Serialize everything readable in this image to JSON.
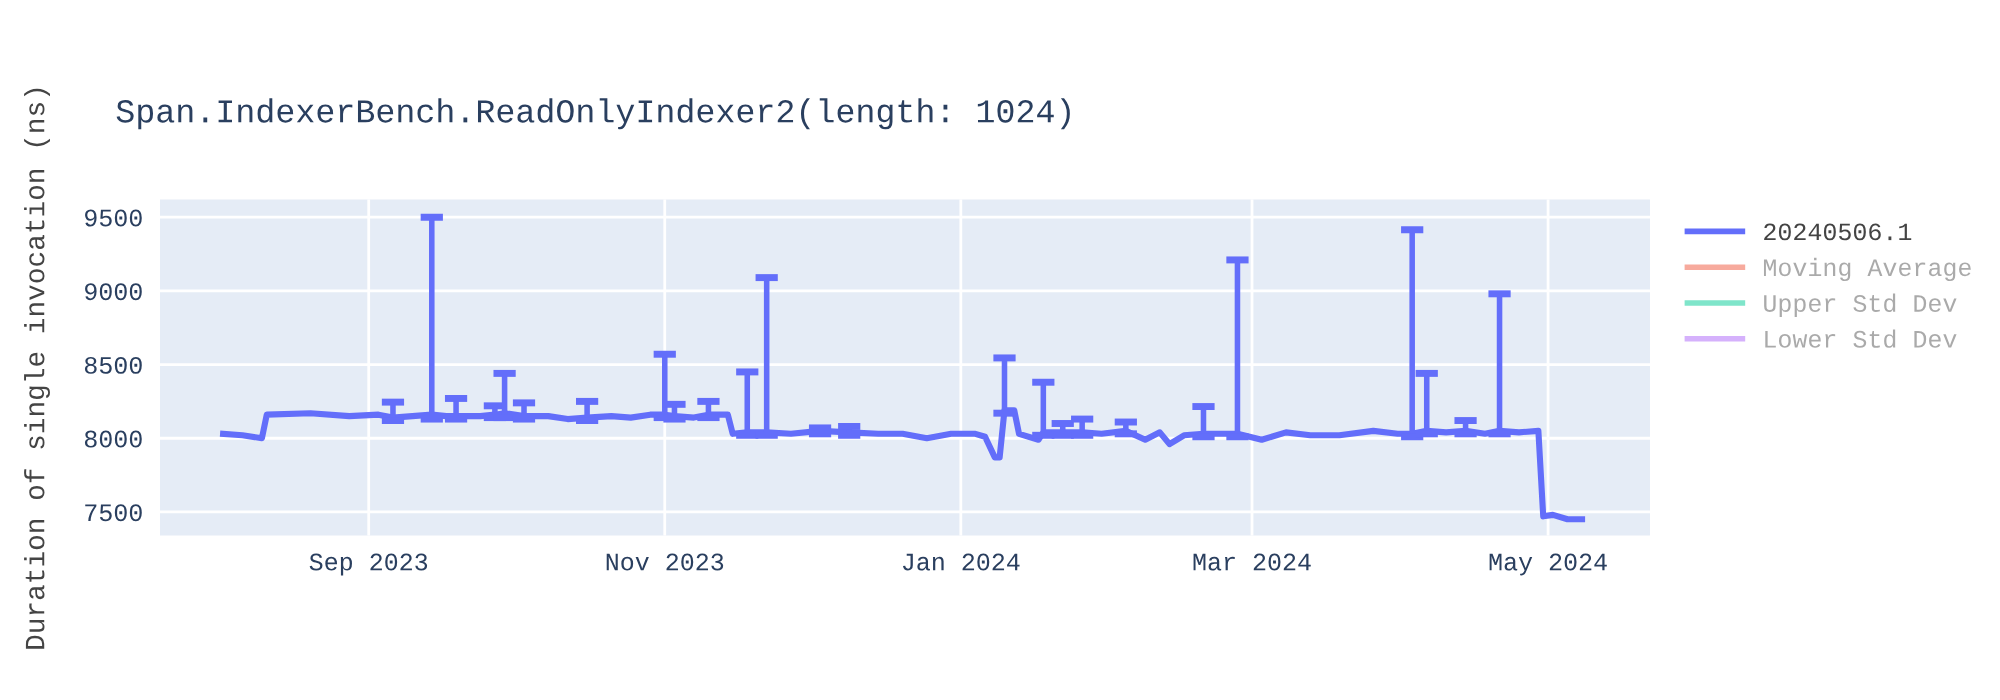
{
  "chart_data": {
    "type": "line",
    "title": "Span.IndexerBench.ReadOnlyIndexer2(length: 1024)",
    "ylabel": "Duration of single invocation (ns)",
    "x": [
      "2023-08-02",
      "2023-08-06",
      "2023-08-10",
      "2023-08-11",
      "2023-08-20",
      "2023-08-28",
      "2023-09-03",
      "2023-09-06",
      "2023-09-10",
      "2023-09-14",
      "2023-09-17",
      "2023-09-19",
      "2023-09-24",
      "2023-09-27",
      "2023-09-29",
      "2023-10-03",
      "2023-10-08",
      "2023-10-12",
      "2023-10-16",
      "2023-10-21",
      "2023-10-25",
      "2023-10-29",
      "2023-11-01",
      "2023-11-03",
      "2023-11-07",
      "2023-11-10",
      "2023-11-14",
      "2023-11-15",
      "2023-11-18",
      "2023-11-22",
      "2023-11-27",
      "2023-12-03",
      "2023-12-09",
      "2023-12-15",
      "2023-12-20",
      "2023-12-25",
      "2023-12-30",
      "2024-01-04",
      "2024-01-06",
      "2024-01-08",
      "2024-01-09",
      "2024-01-10",
      "2024-01-12",
      "2024-01-13",
      "2024-01-17",
      "2024-01-18",
      "2024-01-22",
      "2024-01-26",
      "2024-01-30",
      "2024-02-04",
      "2024-02-08",
      "2024-02-11",
      "2024-02-13",
      "2024-02-16",
      "2024-02-20",
      "2024-02-24",
      "2024-02-27",
      "2024-03-03",
      "2024-03-08",
      "2024-03-13",
      "2024-03-19",
      "2024-03-26",
      "2024-03-31",
      "2024-04-03",
      "2024-04-06",
      "2024-04-10",
      "2024-04-14",
      "2024-04-18",
      "2024-04-21",
      "2024-04-25",
      "2024-04-29",
      "2024-04-30",
      "2024-05-02",
      "2024-05-05",
      "2024-05-08"
    ],
    "series": [
      {
        "name": "20240506.1",
        "color": "#636efa",
        "values": [
          8030,
          8020,
          8000,
          8160,
          8170,
          8150,
          8160,
          8140,
          8150,
          8160,
          8150,
          8150,
          8150,
          8160,
          8170,
          8150,
          8150,
          8130,
          8140,
          8150,
          8140,
          8160,
          8160,
          8150,
          8140,
          8160,
          8160,
          8030,
          8040,
          8040,
          8030,
          8050,
          8040,
          8030,
          8030,
          8000,
          8030,
          8030,
          8010,
          7870,
          7870,
          8190,
          8190,
          8030,
          7990,
          8040,
          8040,
          8040,
          8030,
          8050,
          7990,
          8040,
          7960,
          8020,
          8030,
          8030,
          8030,
          7990,
          8040,
          8020,
          8020,
          8050,
          8030,
          8030,
          8050,
          8040,
          8050,
          8030,
          8050,
          8040,
          8050,
          7470,
          7480,
          7450,
          7450
        ],
        "errors": [
          null,
          null,
          null,
          null,
          null,
          null,
          null,
          [
            8120,
            8245
          ],
          null,
          [
            8130,
            9500
          ],
          null,
          [
            8130,
            8270
          ],
          null,
          [
            8140,
            8220
          ],
          [
            8140,
            8440
          ],
          [
            8130,
            8240
          ],
          null,
          null,
          [
            8120,
            8250
          ],
          null,
          null,
          null,
          [
            8140,
            8570
          ],
          [
            8130,
            8230
          ],
          null,
          [
            8140,
            8250
          ],
          null,
          null,
          [
            8020,
            8450
          ],
          [
            8020,
            9090
          ],
          null,
          [
            8030,
            8070
          ],
          [
            8020,
            8080
          ],
          null,
          null,
          null,
          null,
          null,
          null,
          null,
          null,
          [
            8170,
            8545
          ],
          null,
          null,
          null,
          [
            8020,
            8380
          ],
          [
            8020,
            8100
          ],
          [
            8020,
            8130
          ],
          null,
          [
            8030,
            8110
          ],
          null,
          null,
          null,
          null,
          [
            8010,
            8215
          ],
          null,
          [
            8010,
            9210
          ],
          null,
          null,
          null,
          null,
          null,
          null,
          [
            8010,
            9415
          ],
          [
            8030,
            8440
          ],
          null,
          [
            8030,
            8120
          ],
          null,
          [
            8030,
            8980
          ],
          null,
          null,
          null,
          null,
          null,
          null
        ]
      },
      {
        "name": "Moving Average",
        "color": "#ef553b",
        "x": [
          null
        ],
        "values": [
          null
        ]
      },
      {
        "name": "Upper Std Dev",
        "color": "#00cc96",
        "x": [
          null
        ],
        "values": [
          null
        ]
      },
      {
        "name": "Lower Std Dev",
        "color": "#ab63fa",
        "x": [
          null
        ],
        "values": [
          null
        ]
      }
    ],
    "xlim": [
      "2023-07-20",
      "2024-05-22"
    ],
    "xticks": [
      {
        "value": "2023-09-01",
        "label": "Sep 2023"
      },
      {
        "value": "2023-11-01",
        "label": "Nov 2023"
      },
      {
        "value": "2024-01-01",
        "label": "Jan 2024"
      },
      {
        "value": "2024-03-01",
        "label": "Mar 2024"
      },
      {
        "value": "2024-05-01",
        "label": "May 2024"
      }
    ],
    "ylim": [
      7340,
      9620
    ],
    "yticks": [
      7500,
      8000,
      8500,
      9000,
      9500
    ],
    "grid": true,
    "legend": "top right",
    "marker": "none",
    "line_style": "solid"
  }
}
